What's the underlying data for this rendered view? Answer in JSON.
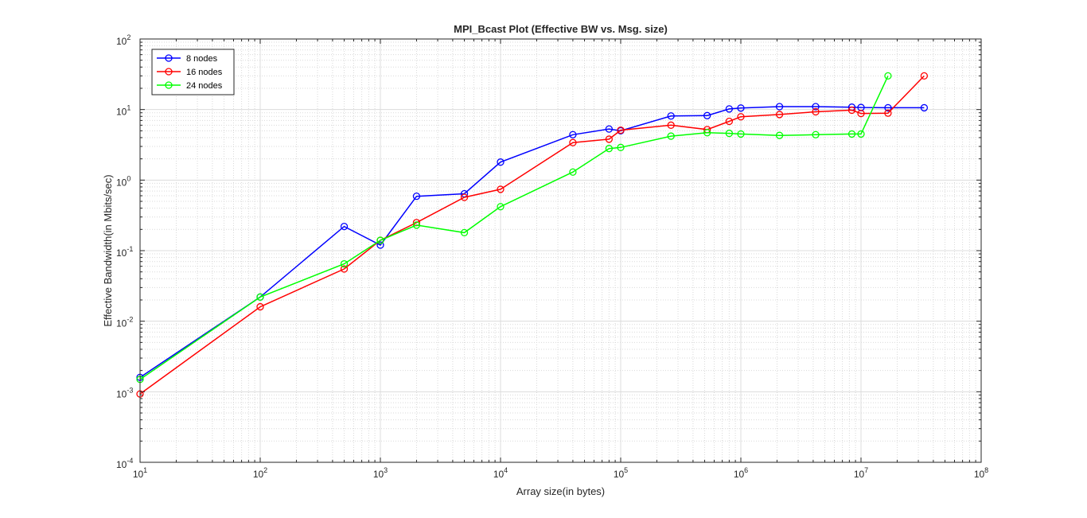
{
  "chart_data": {
    "type": "line",
    "title": "MPI_Bcast Plot (Effective BW vs. Msg. size)",
    "xlabel": "Array size(in bytes)",
    "ylabel": "Effective Bandwidth(in Mbits/sec)",
    "xscale": "log",
    "yscale": "log",
    "xlim": [
      10,
      100000000
    ],
    "ylim": [
      0.0001,
      100
    ],
    "xticks": [
      {
        "base": "10",
        "exp": "1"
      },
      {
        "base": "10",
        "exp": "2"
      },
      {
        "base": "10",
        "exp": "3"
      },
      {
        "base": "10",
        "exp": "4"
      },
      {
        "base": "10",
        "exp": "5"
      },
      {
        "base": "10",
        "exp": "6"
      },
      {
        "base": "10",
        "exp": "7"
      },
      {
        "base": "10",
        "exp": "8"
      }
    ],
    "yticks": [
      {
        "base": "10",
        "exp": "-4"
      },
      {
        "base": "10",
        "exp": "-3"
      },
      {
        "base": "10",
        "exp": "-2"
      },
      {
        "base": "10",
        "exp": "-1"
      },
      {
        "base": "10",
        "exp": "0"
      },
      {
        "base": "10",
        "exp": "1"
      },
      {
        "base": "10",
        "exp": "2"
      }
    ],
    "grid": true,
    "minor_grid": true,
    "legend_position": "top-left",
    "marker": "circle",
    "series": [
      {
        "name": "8 nodes",
        "color": "#0000ff",
        "x": [
          10,
          100,
          500,
          1000,
          2000,
          5000,
          10000,
          40000,
          80000,
          100000,
          262144,
          524288,
          800000,
          1000000,
          2097152,
          4194304,
          8388608,
          10000000,
          16777216,
          33554432
        ],
        "y": [
          0.0016,
          0.022,
          0.22,
          0.12,
          0.59,
          0.64,
          1.8,
          4.4,
          5.3,
          5.0,
          8.1,
          8.2,
          10.2,
          10.5,
          11.0,
          11.0,
          10.8,
          10.7,
          10.6,
          10.6
        ]
      },
      {
        "name": "16 nodes",
        "color": "#ff0000",
        "x": [
          10,
          100,
          500,
          1000,
          2000,
          5000,
          10000,
          40000,
          80000,
          100000,
          262144,
          524288,
          800000,
          1000000,
          2097152,
          4194304,
          8388608,
          10000000,
          16777216,
          33554432
        ],
        "y": [
          0.00093,
          0.016,
          0.055,
          0.14,
          0.25,
          0.57,
          0.74,
          3.4,
          3.8,
          5.1,
          6.0,
          5.2,
          6.8,
          7.9,
          8.5,
          9.3,
          9.8,
          8.8,
          8.9,
          30
        ]
      },
      {
        "name": "24 nodes",
        "color": "#00ff00",
        "x": [
          10,
          100,
          500,
          1000,
          2000,
          5000,
          10000,
          40000,
          80000,
          100000,
          262144,
          524288,
          800000,
          1000000,
          2097152,
          4194304,
          8388608,
          10000000,
          16777216
        ],
        "y": [
          0.0015,
          0.022,
          0.065,
          0.14,
          0.23,
          0.18,
          0.42,
          1.3,
          2.8,
          2.9,
          4.2,
          4.7,
          4.6,
          4.5,
          4.3,
          4.4,
          4.5,
          4.5,
          30
        ]
      }
    ]
  }
}
